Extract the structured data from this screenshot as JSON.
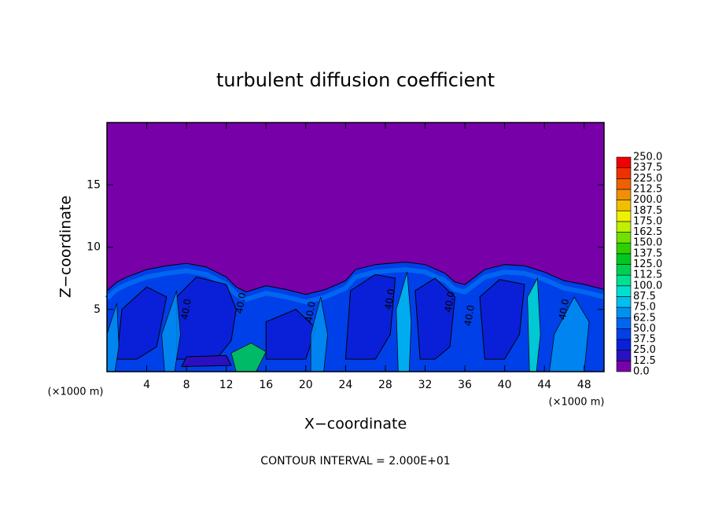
{
  "chart_data": {
    "type": "contour",
    "title": "turbulent diffusion coefficient",
    "x_label": "X−coordinate",
    "y_label": "Z−coordinate",
    "x_unit": "(×1000 m)",
    "x_unit_right": "(×1000 m)",
    "footer": "CONTOUR INTERVAL = 2.000E+01",
    "xlim": [
      0,
      50
    ],
    "ylim": [
      0,
      20
    ],
    "xticks": [
      4,
      8,
      12,
      16,
      20,
      24,
      28,
      32,
      36,
      40,
      44,
      48
    ],
    "yticks": [
      5,
      10,
      15
    ],
    "contour_labels": [
      "40.0",
      "40.0",
      "40.0",
      "40.0",
      "40.0",
      "40.0",
      "40.0"
    ],
    "colorbar": {
      "levels": [
        {
          "value": 0,
          "label": "0.0"
        },
        12.5,
        {
          "value": 25,
          "label": "25.0"
        },
        37.5,
        {
          "value": 50,
          "label": "50.0"
        },
        62.5,
        {
          "value": 75,
          "label": "75.0"
        },
        87.5,
        {
          "value": 100,
          "label": "100.0"
        },
        112.5,
        {
          "value": 125,
          "label": "125.0"
        },
        137.5,
        {
          "value": 150,
          "label": "150.0"
        },
        162.5,
        {
          "value": 175,
          "label": "175.0"
        },
        187.5,
        {
          "value": 200,
          "label": "200.0"
        },
        212.5,
        {
          "value": 225,
          "label": "225.0"
        },
        237.5,
        {
          "value": 250,
          "label": "250.0"
        }
      ],
      "colors": [
        "#7800a8",
        "#2a10c0",
        "#0a20d8",
        "#0040e8",
        "#0066f0",
        "#0090f0",
        "#00c0f0",
        "#00e0d0",
        "#00e090",
        "#00d050",
        "#00c820",
        "#30d000",
        "#70e000",
        "#c0f000",
        "#f0f000",
        "#f0c000",
        "#f09000",
        "#f06000",
        "#f03000",
        "#f00000"
      ]
    }
  }
}
